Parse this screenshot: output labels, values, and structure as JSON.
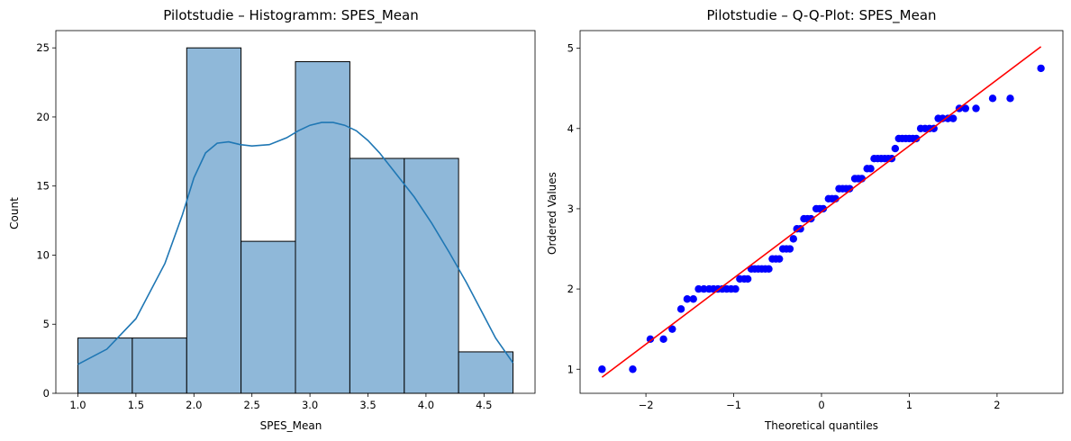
{
  "chart_data": [
    {
      "type": "bar",
      "title": "Pilotstudie – Histogramm: SPES_Mean",
      "xlabel": "SPES_Mean",
      "ylabel": "Count",
      "bin_edges": [
        1.0,
        1.469,
        1.938,
        2.406,
        2.875,
        3.344,
        3.813,
        4.281,
        4.75
      ],
      "values": [
        4,
        4,
        25,
        11,
        24,
        17,
        17,
        3
      ],
      "kde": {
        "x": [
          1.0,
          1.25,
          1.5,
          1.75,
          1.9,
          2.0,
          2.1,
          2.2,
          2.3,
          2.4,
          2.5,
          2.65,
          2.8,
          2.9,
          3.0,
          3.1,
          3.2,
          3.3,
          3.4,
          3.5,
          3.6,
          3.75,
          3.9,
          4.05,
          4.2,
          4.35,
          4.5,
          4.6,
          4.75
        ],
        "y": [
          2.1,
          3.2,
          5.4,
          9.4,
          12.9,
          15.6,
          17.4,
          18.1,
          18.2,
          18.0,
          17.9,
          18.0,
          18.5,
          19.0,
          19.4,
          19.6,
          19.6,
          19.4,
          19.0,
          18.3,
          17.4,
          15.8,
          14.2,
          12.3,
          10.2,
          8.0,
          5.6,
          4.0,
          2.2
        ]
      },
      "xlim": [
        0.81,
        4.94
      ],
      "ylim": [
        0,
        26.25
      ],
      "xticks": [
        1.0,
        1.5,
        2.0,
        2.5,
        3.0,
        3.5,
        4.0,
        4.5
      ],
      "xtick_labels": [
        "1.0",
        "1.5",
        "2.0",
        "2.5",
        "3.0",
        "3.5",
        "4.0",
        "4.5"
      ],
      "yticks": [
        0,
        5,
        10,
        15,
        20,
        25
      ],
      "ytick_labels": [
        "0",
        "5",
        "10",
        "15",
        "20",
        "25"
      ],
      "bar_color": "#8fb8d9",
      "line_color": "#1f77b4",
      "grid": false
    },
    {
      "type": "scatter",
      "title": "Pilotstudie – Q-Q-Plot: SPES_Mean",
      "xlabel": "Theoretical quantiles",
      "ylabel": "Ordered Values",
      "points": [
        [
          -2.5,
          1.0
        ],
        [
          -2.15,
          1.0
        ],
        [
          -1.95,
          1.375
        ],
        [
          -1.8,
          1.375
        ],
        [
          -1.7,
          1.5
        ],
        [
          -1.6,
          1.75
        ],
        [
          -1.53,
          1.875
        ],
        [
          -1.46,
          1.875
        ],
        [
          -1.4,
          2.0
        ],
        [
          -1.34,
          2.0
        ],
        [
          -1.28,
          2.0
        ],
        [
          -1.23,
          2.0
        ],
        [
          -1.18,
          2.0
        ],
        [
          -1.13,
          2.0
        ],
        [
          -1.08,
          2.0
        ],
        [
          -1.03,
          2.0
        ],
        [
          -0.98,
          2.0
        ],
        [
          -0.93,
          2.125
        ],
        [
          -0.88,
          2.125
        ],
        [
          -0.84,
          2.125
        ],
        [
          -0.8,
          2.25
        ],
        [
          -0.76,
          2.25
        ],
        [
          -0.72,
          2.25
        ],
        [
          -0.68,
          2.25
        ],
        [
          -0.64,
          2.25
        ],
        [
          -0.6,
          2.25
        ],
        [
          -0.56,
          2.375
        ],
        [
          -0.52,
          2.375
        ],
        [
          -0.48,
          2.375
        ],
        [
          -0.44,
          2.5
        ],
        [
          -0.4,
          2.5
        ],
        [
          -0.36,
          2.5
        ],
        [
          -0.32,
          2.625
        ],
        [
          -0.28,
          2.75
        ],
        [
          -0.24,
          2.75
        ],
        [
          -0.2,
          2.875
        ],
        [
          -0.16,
          2.875
        ],
        [
          -0.12,
          2.875
        ],
        [
          -0.06,
          3.0
        ],
        [
          -0.02,
          3.0
        ],
        [
          0.02,
          3.0
        ],
        [
          0.08,
          3.125
        ],
        [
          0.12,
          3.125
        ],
        [
          0.16,
          3.125
        ],
        [
          0.2,
          3.25
        ],
        [
          0.24,
          3.25
        ],
        [
          0.28,
          3.25
        ],
        [
          0.32,
          3.25
        ],
        [
          0.38,
          3.375
        ],
        [
          0.42,
          3.375
        ],
        [
          0.46,
          3.375
        ],
        [
          0.52,
          3.5
        ],
        [
          0.56,
          3.5
        ],
        [
          0.6,
          3.625
        ],
        [
          0.64,
          3.625
        ],
        [
          0.68,
          3.625
        ],
        [
          0.72,
          3.625
        ],
        [
          0.76,
          3.625
        ],
        [
          0.8,
          3.625
        ],
        [
          0.84,
          3.75
        ],
        [
          0.88,
          3.875
        ],
        [
          0.92,
          3.875
        ],
        [
          0.96,
          3.875
        ],
        [
          1.0,
          3.875
        ],
        [
          1.04,
          3.875
        ],
        [
          1.08,
          3.875
        ],
        [
          1.13,
          4.0
        ],
        [
          1.18,
          4.0
        ],
        [
          1.23,
          4.0
        ],
        [
          1.28,
          4.0
        ],
        [
          1.33,
          4.125
        ],
        [
          1.38,
          4.125
        ],
        [
          1.44,
          4.125
        ],
        [
          1.5,
          4.125
        ],
        [
          1.57,
          4.25
        ],
        [
          1.64,
          4.25
        ],
        [
          1.76,
          4.25
        ],
        [
          1.95,
          4.375
        ],
        [
          2.15,
          4.375
        ],
        [
          2.5,
          4.75
        ]
      ],
      "fit_line": {
        "x": [
          -2.5,
          2.5
        ],
        "y": [
          0.9,
          5.02
        ]
      },
      "xlim": [
        -2.75,
        2.75
      ],
      "ylim": [
        0.7,
        5.22
      ],
      "xticks": [
        -2,
        -1,
        0,
        1,
        2
      ],
      "xtick_labels": [
        "−2",
        "−1",
        "0",
        "1",
        "2"
      ],
      "yticks": [
        1,
        2,
        3,
        4,
        5
      ],
      "ytick_labels": [
        "1",
        "2",
        "3",
        "4",
        "5"
      ],
      "point_color": "#0000ff",
      "line_color": "#ff0000",
      "grid": false
    }
  ]
}
